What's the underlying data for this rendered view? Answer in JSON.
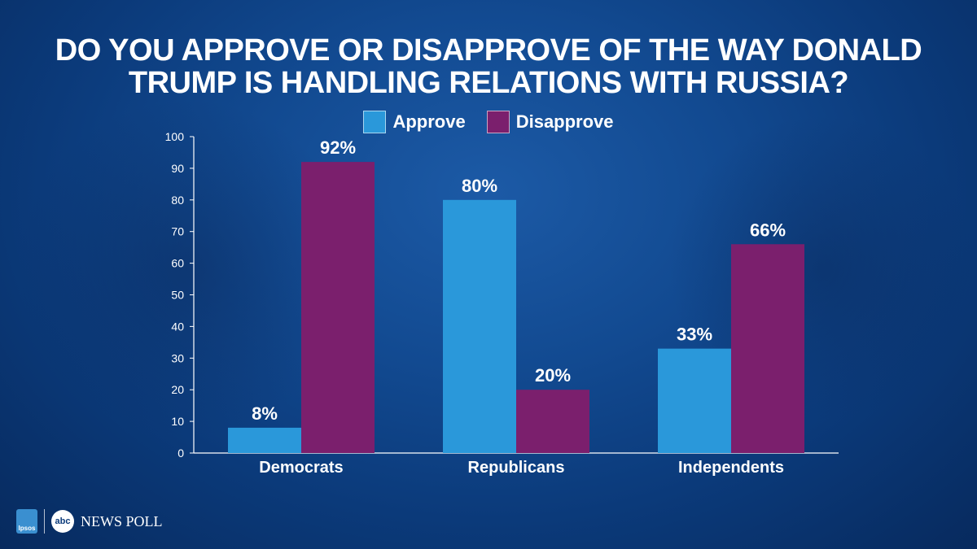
{
  "chart_data": {
    "type": "bar",
    "title": "DO YOU APPROVE OR DISAPPROVE OF THE WAY DONALD\nTRUMP IS HANDLING RELATIONS WITH RUSSIA?",
    "categories": [
      "Democrats",
      "Republicans",
      "Independents"
    ],
    "series": [
      {
        "name": "Approve",
        "values": [
          8,
          80,
          33
        ],
        "labels": [
          "8%",
          "80%",
          "33%"
        ],
        "color": "#2a98da"
      },
      {
        "name": "Disapprove",
        "values": [
          92,
          20,
          66
        ],
        "labels": [
          "92%",
          "20%",
          "66%"
        ],
        "color": "#7b1f6d"
      }
    ],
    "ylim": [
      0,
      100
    ],
    "yticks": [
      0,
      10,
      20,
      30,
      40,
      50,
      60,
      70,
      80,
      90,
      100
    ],
    "legend_position": "top-center",
    "grid": false
  },
  "footer": {
    "ipsos": "Ipsos",
    "abc": "abc",
    "poll_label": "NEWS POLL"
  }
}
